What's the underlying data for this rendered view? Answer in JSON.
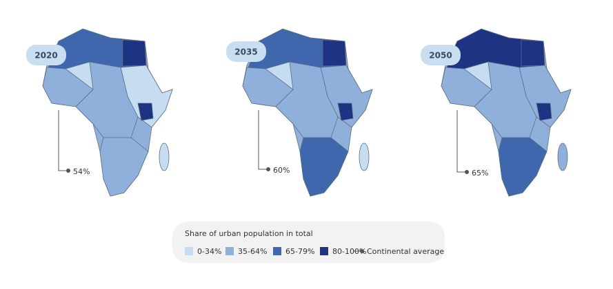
{
  "maps": [
    {
      "year": "2020",
      "average": "54%"
    },
    {
      "year": "2035",
      "average": "60%"
    },
    {
      "year": "2050",
      "average": "65%"
    }
  ],
  "legend": {
    "title": "Share of urban population in total",
    "items": [
      "0-34%",
      "35-64%",
      "65-79%",
      "80-100%",
      "Continental average"
    ]
  }
}
